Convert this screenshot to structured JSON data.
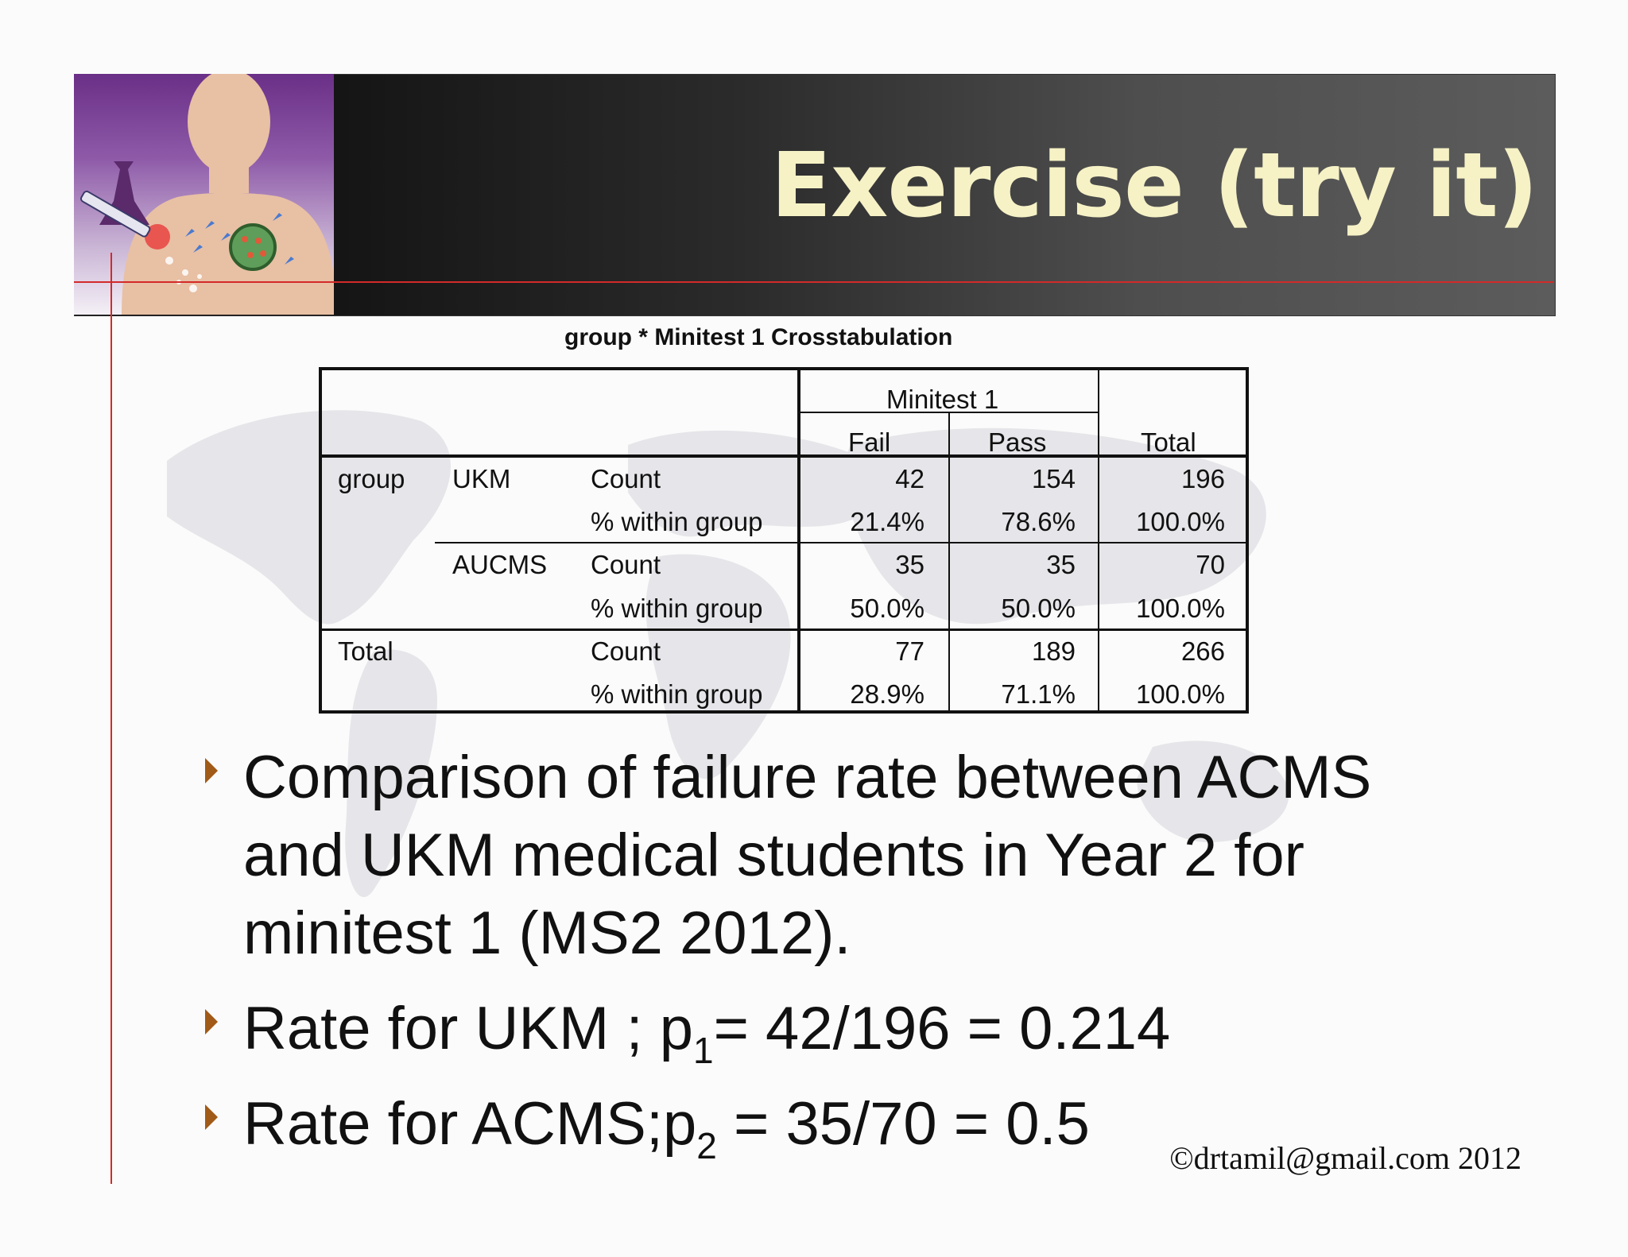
{
  "slide": {
    "title": "Exercise (try it)",
    "copyright": "©drtamil@gmail.com 2012"
  },
  "table": {
    "caption": "group * Minitest 1 Crosstabulation",
    "column_group_header": "Minitest 1",
    "columns": [
      "Fail",
      "Pass",
      "Total"
    ],
    "row_group_label": "group",
    "stat_labels": [
      "Count",
      "% within group"
    ],
    "rows": [
      {
        "group": "UKM",
        "count": [
          "42",
          "154",
          "196"
        ],
        "pct": [
          "21.4%",
          "78.6%",
          "100.0%"
        ]
      },
      {
        "group": "AUCMS",
        "count": [
          "35",
          "35",
          "70"
        ],
        "pct": [
          "50.0%",
          "50.0%",
          "100.0%"
        ]
      }
    ],
    "total": {
      "label": "Total",
      "count": [
        "77",
        "189",
        "266"
      ],
      "pct": [
        "28.9%",
        "71.1%",
        "100.0%"
      ]
    }
  },
  "bullets": {
    "b1": "Comparison of failure rate between ACMS and UKM medical students in Year 2 for minitest 1 (MS2 2012).",
    "b2_pre": "Rate for UKM ; p",
    "b2_sub": "1",
    "b2_post": "= 42/196 = 0.214",
    "b3_pre": "Rate for ACMS;p",
    "b3_sub": "2",
    "b3_post": " = 35/70 = 0.5"
  }
}
